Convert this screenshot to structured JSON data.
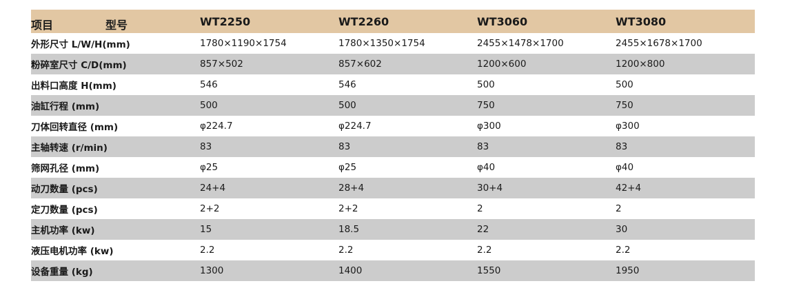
{
  "table": {
    "header": {
      "item": "项目",
      "model": "型号",
      "models": [
        "WT2250",
        "WT2260",
        "WT3060",
        "WT3080"
      ]
    },
    "rows": [
      {
        "label": "外形尺寸 L/W/H(mm)",
        "values": [
          "1780×1190×1754",
          "1780×1350×1754",
          "2455×1478×1700",
          "2455×1678×1700"
        ]
      },
      {
        "label": "粉碎室尺寸 C/D(mm)",
        "values": [
          "857×502",
          "857×602",
          "1200×600",
          "1200×800"
        ]
      },
      {
        "label": "出料口高度 H(mm)",
        "values": [
          "546",
          "546",
          "500",
          "500"
        ]
      },
      {
        "label": "油缸行程 (mm)",
        "values": [
          "500",
          "500",
          "750",
          "750"
        ]
      },
      {
        "label": "刀体回转直径 (mm)",
        "values": [
          "φ224.7",
          "φ224.7",
          "φ300",
          "φ300"
        ]
      },
      {
        "label": "主轴转速 (r/min)",
        "values": [
          "83",
          "83",
          "83",
          "83"
        ]
      },
      {
        "label": "筛网孔径 (mm)",
        "values": [
          "φ25",
          "φ25",
          "φ40",
          "φ40"
        ]
      },
      {
        "label": "动刀数量 (pcs)",
        "values": [
          "24+4",
          "28+4",
          "30+4",
          "42+4"
        ]
      },
      {
        "label": "定刀数量 (pcs)",
        "values": [
          "2+2",
          "2+2",
          "2",
          "2"
        ]
      },
      {
        "label": "主机功率 (kw)",
        "values": [
          "15",
          "18.5",
          "22",
          "30"
        ]
      },
      {
        "label": "液压电机功率 (kw)",
        "values": [
          "2.2",
          "2.2",
          "2.2",
          "2.2"
        ]
      },
      {
        "label": "设备重量 (kg)",
        "values": [
          "1300",
          "1400",
          "1550",
          "1950"
        ]
      }
    ]
  },
  "colors": {
    "header_bg": "#e2c7a3",
    "shaded_row_bg": "#cccccc",
    "plain_row_bg": "#ffffff"
  }
}
